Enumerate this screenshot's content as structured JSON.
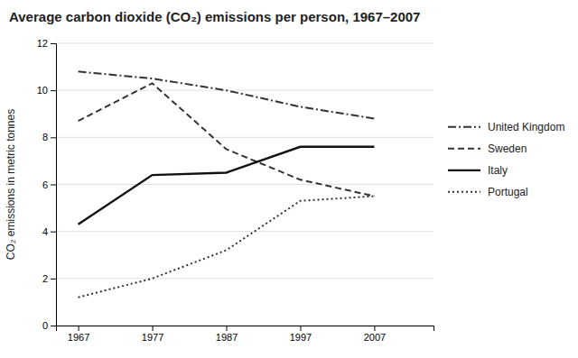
{
  "chart_data": {
    "type": "line",
    "title": "Average carbon dioxide (CO₂) emissions per person, 1967–2007",
    "y_label": "CO₂ emissions in metric tonnes",
    "x": [
      1967,
      1977,
      1987,
      1997,
      2007
    ],
    "series": [
      {
        "name": "United Kingdom",
        "values": [
          10.8,
          10.5,
          10.0,
          9.3,
          8.8
        ],
        "color": "#333333",
        "line_style": "dashdot"
      },
      {
        "name": "Sweden",
        "values": [
          8.7,
          10.3,
          7.5,
          6.2,
          5.5
        ],
        "color": "#333333",
        "line_style": "dashed"
      },
      {
        "name": "Italy",
        "values": [
          4.3,
          6.4,
          6.5,
          7.6,
          7.6
        ],
        "color": "#111111",
        "line_style": "solid"
      },
      {
        "name": "Portugal",
        "values": [
          1.2,
          2.0,
          3.2,
          5.3,
          5.5
        ],
        "color": "#333333",
        "line_style": "dotted"
      }
    ],
    "xlim": [
      1964,
      2015
    ],
    "ylim": [
      0,
      12
    ],
    "xticks": [
      1967,
      1977,
      1987,
      1997,
      2007
    ],
    "yticks": [
      0,
      2,
      4,
      6,
      8,
      10,
      12
    ],
    "grid": true,
    "legend": "right"
  }
}
